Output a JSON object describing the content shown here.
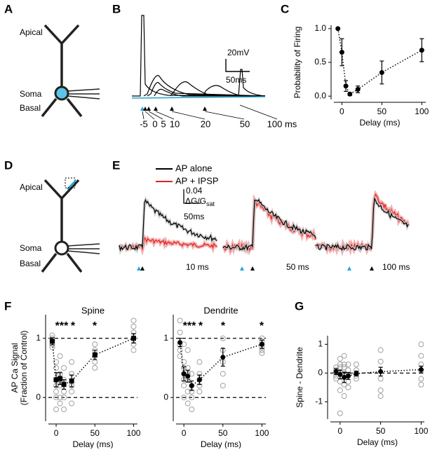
{
  "panels": {
    "A": {
      "letter": "A",
      "labels": [
        "Apical",
        "Soma",
        "Basal"
      ]
    },
    "B": {
      "letter": "B",
      "scale_v": "20mV",
      "scale_t": "50ms",
      "delays": [
        "-5",
        "0",
        "5",
        "10",
        "20",
        "50",
        "100 ms"
      ]
    },
    "C": {
      "letter": "C"
    },
    "D": {
      "letter": "D",
      "labels": [
        "Apical",
        "Soma",
        "Basal"
      ]
    },
    "E": {
      "letter": "E",
      "legend": [
        "AP alone",
        "AP + IPSP"
      ],
      "scale_v": "0.04",
      "scale_unit": "ΔG/G",
      "scale_sub": "sat",
      "scale_t": "50ms",
      "delays": [
        "10 ms",
        "50 ms",
        "100 ms"
      ]
    },
    "F": {
      "letter": "F"
    },
    "G": {
      "letter": "G"
    }
  },
  "chart_data": [
    {
      "type": "line",
      "xlabel": "Delay (ms)",
      "ylabel": "Probability of Firing",
      "xlim": [
        -10,
        105
      ],
      "ylim": [
        -0.05,
        1.05
      ],
      "xticks": [
        0,
        50,
        100
      ],
      "yticks": [
        {
          "value": 0,
          "label": "0.0"
        },
        {
          "value": 0.5,
          "label": "0.5"
        },
        {
          "value": 1,
          "label": "1.0"
        }
      ],
      "series": [
        {
          "color": "#000000",
          "marker": "circle",
          "x": [
            -5,
            0,
            5,
            10,
            20,
            50,
            100
          ],
          "values": [
            1.0,
            0.65,
            0.15,
            0.03,
            0.1,
            0.35,
            0.68
          ],
          "errors": [
            0,
            0.2,
            0.08,
            0.02,
            0.05,
            0.17,
            0.17
          ]
        }
      ]
    },
    {
      "type": "line",
      "title": "Spine",
      "xlabel": "Delay (ms)",
      "ylabel": [
        "AP Ca Signal",
        "(Fraction of Control)"
      ],
      "xlim": [
        -10,
        105
      ],
      "ylim": [
        -0.4,
        1.4
      ],
      "xticks": [
        0,
        50,
        100
      ],
      "yticks": [
        0,
        1
      ],
      "hlines": [
        0,
        1
      ],
      "annotations": [
        "***",
        "*",
        "*"
      ],
      "series": [
        {
          "color": "#a0a0a0",
          "marker": "open",
          "x": [
            -5,
            -5,
            -5,
            -5,
            -5,
            0,
            0,
            0,
            0,
            0,
            0,
            0,
            5,
            5,
            5,
            5,
            5,
            5,
            10,
            10,
            10,
            10,
            10,
            20,
            20,
            20,
            20,
            20,
            50,
            50,
            50,
            50,
            50,
            100,
            100,
            100,
            100,
            100,
            100
          ],
          "values": [
            0.9,
            1.0,
            1.05,
            0.95,
            0.85,
            0.6,
            0.3,
            0.1,
            0.0,
            -0.2,
            0.5,
            0.2,
            0.7,
            0.4,
            0.2,
            0.0,
            -0.1,
            0.3,
            0.5,
            0.3,
            0.1,
            0.0,
            -0.2,
            0.6,
            0.4,
            0.2,
            0.1,
            -0.1,
            0.9,
            0.8,
            0.7,
            0.6,
            0.5,
            1.3,
            1.2,
            1.1,
            1.0,
            0.9,
            0.8
          ]
        },
        {
          "color": "#000000",
          "marker": "square",
          "x": [
            -5,
            0,
            5,
            10,
            20,
            50,
            100
          ],
          "values": [
            0.95,
            0.3,
            0.32,
            0.22,
            0.28,
            0.72,
            1.0
          ],
          "errors": [
            0.06,
            0.12,
            0.1,
            0.08,
            0.1,
            0.08,
            0.08
          ]
        }
      ]
    },
    {
      "type": "line",
      "title": "Dendrite",
      "xlabel": "Delay (ms)",
      "xlim": [
        -10,
        105
      ],
      "ylim": [
        -0.4,
        1.4
      ],
      "xticks": [
        0,
        50,
        100
      ],
      "yticks": [
        0,
        1
      ],
      "hlines": [
        0,
        1
      ],
      "annotations": [
        "***",
        "*",
        "*",
        "*"
      ],
      "series": [
        {
          "color": "#a0a0a0",
          "marker": "open",
          "x": [
            -5,
            -5,
            -5,
            -5,
            -5,
            0,
            0,
            0,
            0,
            0,
            0,
            0,
            5,
            5,
            5,
            5,
            5,
            5,
            10,
            10,
            10,
            10,
            10,
            20,
            20,
            20,
            20,
            20,
            50,
            50,
            50,
            50,
            50,
            100,
            100,
            100,
            100,
            100,
            100
          ],
          "values": [
            1.3,
            1.1,
            0.9,
            0.8,
            0.7,
            0.9,
            0.6,
            0.4,
            0.2,
            0.0,
            0.5,
            0.3,
            0.8,
            0.5,
            0.3,
            0.1,
            -0.1,
            0.4,
            0.4,
            0.2,
            0.0,
            -0.2,
            0.1,
            0.6,
            0.4,
            0.3,
            0.2,
            0.1,
            1.0,
            0.8,
            0.6,
            0.4,
            0.2,
            1.0,
            0.95,
            0.9,
            0.85,
            0.8,
            0.75
          ]
        },
        {
          "color": "#000000",
          "marker": "circle",
          "x": [
            -5,
            0,
            5,
            10,
            20,
            50,
            100
          ],
          "values": [
            0.93,
            0.4,
            0.36,
            0.2,
            0.3,
            0.68,
            0.9
          ],
          "errors": [
            0.07,
            0.12,
            0.1,
            0.08,
            0.08,
            0.15,
            0.07
          ]
        }
      ]
    },
    {
      "type": "line",
      "xlabel": "Delay (ms)",
      "ylabel": "Spine - Dendrite",
      "xlim": [
        -12,
        104
      ],
      "ylim": [
        -1.6,
        1.3
      ],
      "xticks": [
        0,
        50,
        100
      ],
      "yticks": [
        -1,
        0,
        1
      ],
      "hlines": [
        0
      ],
      "series": [
        {
          "color": "#a0a0a0",
          "marker": "open",
          "x": [
            -5,
            -5,
            -5,
            -5,
            -5,
            0,
            0,
            0,
            0,
            0,
            0,
            0,
            5,
            5,
            5,
            5,
            5,
            5,
            10,
            10,
            10,
            10,
            10,
            20,
            20,
            20,
            20,
            20,
            50,
            50,
            50,
            50,
            50,
            100,
            100,
            100,
            100,
            100,
            100
          ],
          "values": [
            0.2,
            0.1,
            0,
            -0.1,
            -0.2,
            0.5,
            0.2,
            0,
            -0.3,
            -0.6,
            -1.4,
            0.3,
            0.6,
            0.3,
            0,
            -0.4,
            -0.8,
            0.2,
            0.3,
            0.1,
            -0.1,
            -0.3,
            -0.5,
            0.3,
            0.1,
            0,
            -0.1,
            -0.2,
            0.8,
            0.4,
            -0.2,
            -0.6,
            -0.8,
            1.0,
            0.6,
            0.3,
            0.1,
            -0.2,
            -0.4
          ]
        },
        {
          "color": "#000000",
          "marker": "circle",
          "x": [
            -5,
            0,
            5,
            10,
            20,
            50,
            100
          ],
          "values": [
            0.05,
            -0.05,
            -0.15,
            -0.1,
            -0.02,
            0.05,
            0.12
          ],
          "errors": [
            0.1,
            0.15,
            0.18,
            0.12,
            0.08,
            0.15,
            0.12
          ]
        }
      ]
    }
  ]
}
